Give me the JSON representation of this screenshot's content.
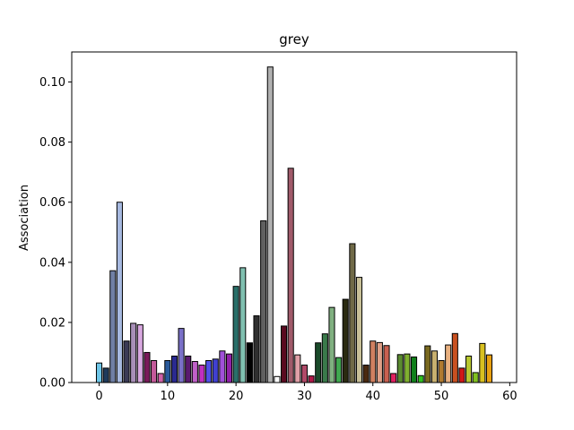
{
  "chart_data": {
    "type": "bar",
    "title": "grey",
    "xlabel": "",
    "ylabel": "Association",
    "xlim": [
      -4,
      61
    ],
    "ylim": [
      0,
      0.11
    ],
    "xticks": [
      0,
      10,
      20,
      30,
      40,
      50,
      60
    ],
    "yticks": [
      0.0,
      0.02,
      0.04,
      0.06,
      0.08,
      0.1
    ],
    "ytick_labels": [
      "0.00",
      "0.02",
      "0.04",
      "0.06",
      "0.08",
      "0.10"
    ],
    "grid": false,
    "x": [
      0,
      1,
      2,
      3,
      4,
      5,
      6,
      7,
      8,
      9,
      10,
      11,
      12,
      13,
      14,
      15,
      16,
      17,
      18,
      19,
      20,
      21,
      22,
      23,
      24,
      25,
      26,
      27,
      28,
      29,
      30,
      31,
      32,
      33,
      34,
      35,
      36,
      37,
      38,
      39,
      40,
      41,
      42,
      43,
      44,
      45,
      46,
      47,
      48,
      49,
      50,
      51,
      52,
      53,
      54,
      55,
      56,
      57
    ],
    "values": [
      0.0065,
      0.0048,
      0.0372,
      0.06,
      0.0138,
      0.0197,
      0.0192,
      0.01,
      0.0073,
      0.003,
      0.0073,
      0.0088,
      0.018,
      0.0088,
      0.007,
      0.0058,
      0.0073,
      0.0078,
      0.0105,
      0.0095,
      0.032,
      0.0382,
      0.0132,
      0.0222,
      0.0538,
      0.105,
      0.002,
      0.0188,
      0.0713,
      0.0092,
      0.0058,
      0.0022,
      0.0132,
      0.0162,
      0.025,
      0.0083,
      0.0277,
      0.0462,
      0.035,
      0.0058,
      0.0138,
      0.0133,
      0.0123,
      0.003,
      0.0093,
      0.0095,
      0.0085,
      0.0023,
      0.0122,
      0.0105,
      0.0073,
      0.0125,
      0.0163,
      0.0048,
      0.0088,
      0.0033,
      0.013,
      0.0092
    ],
    "colors": [
      "#6ec6e8",
      "#1f3b5c",
      "#6f7fa5",
      "#a7b9e0",
      "#3a3a55",
      "#a88fb8",
      "#d8a8e0",
      "#7a1a5a",
      "#c45a9a",
      "#d060a8",
      "#2a5a9a",
      "#2a2a90",
      "#7a70c8",
      "#5a1a70",
      "#c060c8",
      "#c030c0",
      "#5050e8",
      "#4040d0",
      "#a050d8",
      "#9020a8",
      "#2a706a",
      "#80c0b0",
      "#000000",
      "#303030",
      "#606060",
      "#b0b0b0",
      "#ffffff",
      "#5a0a20",
      "#a05a6a",
      "#e0a0a8",
      "#b04a68",
      "#b01848",
      "#1a4a2a",
      "#3a7a4a",
      "#80b080",
      "#40a850",
      "#2a2a10",
      "#706a48",
      "#c8c098",
      "#4a2a10",
      "#d08060",
      "#e0a088",
      "#c86050",
      "#e02060",
      "#5a8a30",
      "#80b030",
      "#10801a",
      "#30c020",
      "#7a6a20",
      "#c8b070",
      "#b07a30",
      "#e8b080",
      "#c85020",
      "#d01818",
      "#b8c830",
      "#80c020",
      "#d8c020",
      "#e8a010"
    ],
    "edgecolor": "#000000"
  }
}
